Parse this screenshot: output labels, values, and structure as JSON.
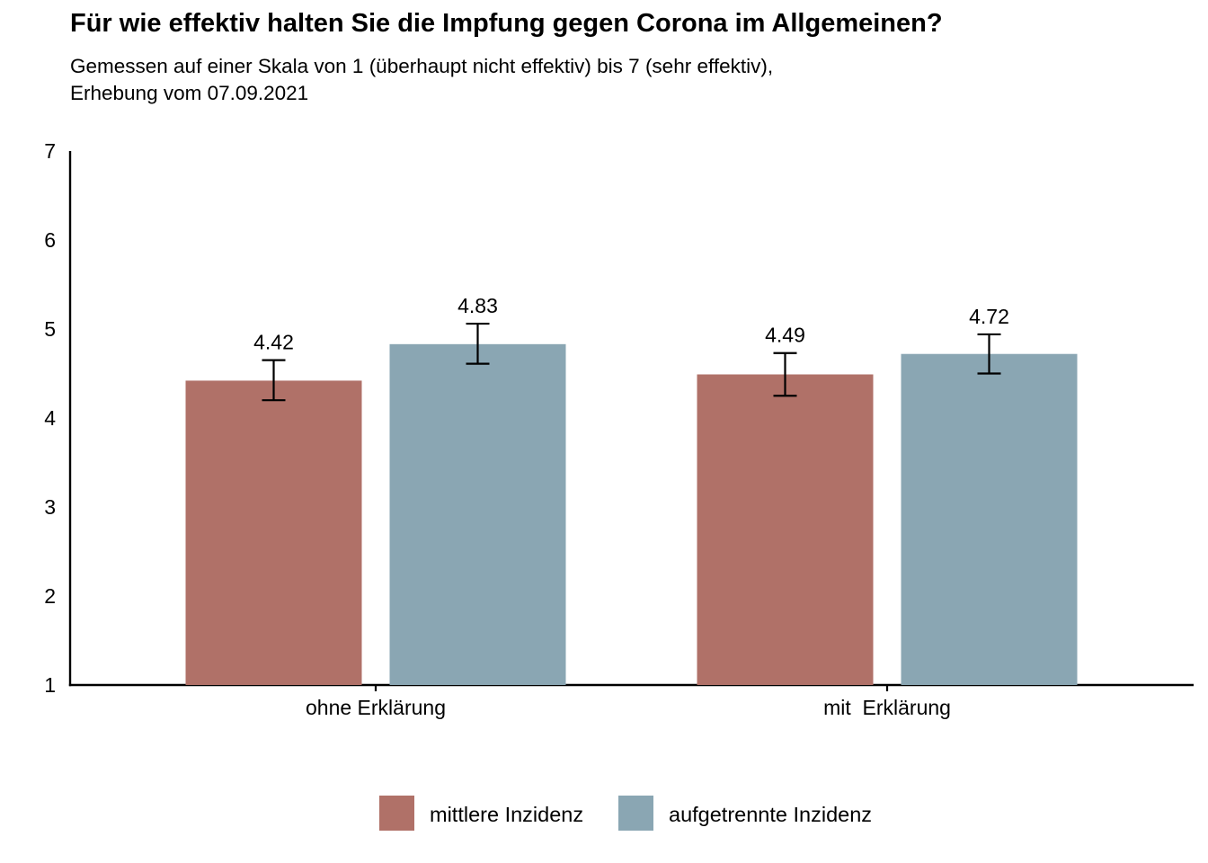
{
  "chart_data": {
    "type": "bar",
    "title": "Für wie effektiv halten Sie die Impfung gegen Corona im Allgemeinen?",
    "subtitle": [
      "Gemessen auf einer Skala von 1 (überhaupt nicht effektiv) bis 7 (sehr effektiv),",
      "Erhebung vom 07.09.2021"
    ],
    "xlabel": "",
    "ylabel": "",
    "categories": [
      "ohne Erklärung",
      "mit  Erklärung"
    ],
    "series": [
      {
        "name": "mittlere Inzidenz",
        "color": "#b07168",
        "values": [
          4.42,
          4.49
        ],
        "error_low": [
          4.2,
          4.25
        ],
        "error_high": [
          4.65,
          4.73
        ],
        "value_labels": [
          "4.42",
          "4.49"
        ]
      },
      {
        "name": "aufgetrennte Inzidenz",
        "color": "#8aa6b3",
        "values": [
          4.83,
          4.72
        ],
        "error_low": [
          4.61,
          4.5
        ],
        "error_high": [
          5.06,
          4.94
        ],
        "value_labels": [
          "4.83",
          "4.72"
        ]
      }
    ],
    "ylim": [
      1,
      7
    ],
    "yticks": [
      "1",
      "2",
      "3",
      "4",
      "5",
      "6",
      "7"
    ],
    "grid": false,
    "legend_position": "bottom-center"
  }
}
